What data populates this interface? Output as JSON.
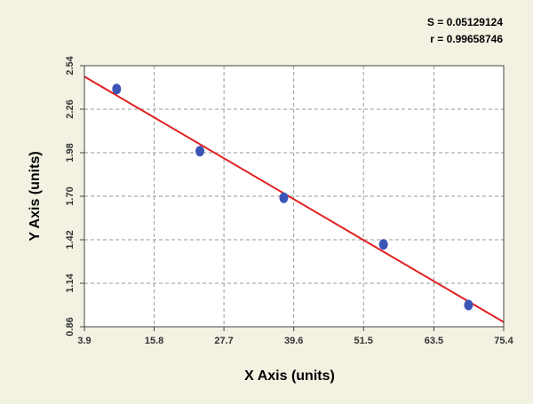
{
  "stats": {
    "s_label": "S = 0.05129124",
    "r_label": "r = 0.99658746"
  },
  "colors": {
    "background": "#f2f1e2",
    "plot_background": "#ffffff",
    "point": "#3a55b5",
    "fit_line": "#e02020",
    "grid": "#9a9a9a"
  },
  "chart_data": {
    "type": "scatter",
    "xlabel": "X Axis (units)",
    "ylabel": "Y Axis (units)",
    "xlim": [
      3.9,
      75.4
    ],
    "ylim": [
      0.86,
      2.54
    ],
    "x_ticks": [
      "3.9",
      "15.8",
      "27.7",
      "39.6",
      "51.5",
      "63.5",
      "75.4"
    ],
    "y_ticks": [
      "0.86",
      "1.14",
      "1.42",
      "1.70",
      "1.98",
      "2.26",
      "2.54"
    ],
    "grid": true,
    "series": [
      {
        "points": [
          {
            "x": 9.4,
            "y": 2.39
          },
          {
            "x": 23.6,
            "y": 1.99
          },
          {
            "x": 37.9,
            "y": 1.69
          },
          {
            "x": 54.9,
            "y": 1.39
          },
          {
            "x": 69.4,
            "y": 1.0
          }
        ]
      }
    ],
    "fit_line": {
      "x": [
        3.9,
        75.4
      ],
      "y": [
        2.47,
        0.89
      ]
    }
  }
}
